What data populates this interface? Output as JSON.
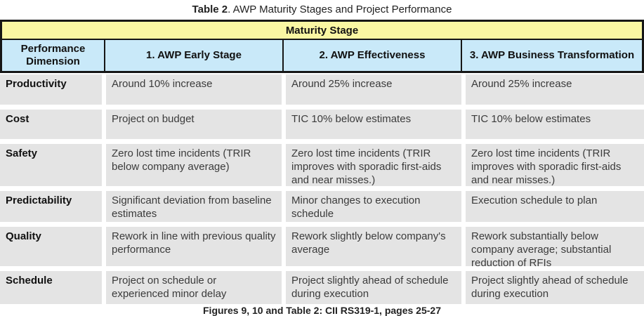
{
  "title": {
    "label": "Table 2",
    "text": ". AWP Maturity Stages and Project Performance"
  },
  "table": {
    "maturity_header": "Maturity Stage",
    "columns": [
      "Performance Dimension",
      "1. AWP Early Stage",
      "2. AWP Effectiveness",
      "3. AWP Business Transformation"
    ],
    "rows": [
      {
        "dimension": "Productivity",
        "early": "Around 10% increase",
        "effectiveness": "Around 25% increase",
        "transformation": "Around 25% increase"
      },
      {
        "dimension": "Cost",
        "early": "Project on budget",
        "effectiveness": "TIC 10% below estimates",
        "transformation": "TIC 10% below estimates"
      },
      {
        "dimension": "Safety",
        "early": "Zero lost time incidents (TRIR below company average)",
        "effectiveness": "Zero lost time incidents (TRIR improves with sporadic first-aids and near misses.)",
        "transformation": "Zero lost time incidents (TRIR improves with sporadic first-aids and near misses.)"
      },
      {
        "dimension": "Predictability",
        "early": "Significant deviation from baseline estimates",
        "effectiveness": "Minor changes to execution schedule",
        "transformation": "Execution schedule to plan"
      },
      {
        "dimension": "Quality",
        "early": "Rework in line with previous quality performance",
        "effectiveness": "Rework slightly below company's average",
        "transformation": "Rework substantially below company average; substantial reduction of RFIs"
      },
      {
        "dimension": "Schedule",
        "early": "Project on schedule or experienced minor delay",
        "effectiveness": "Project slightly ahead of schedule during execution",
        "transformation": "Project slightly ahead of schedule during execution"
      }
    ]
  },
  "caption": "Figures 9, 10 and Table 2: CII RS319-1, pages 25-27",
  "colors": {
    "maturity_band_yellow": "#FAF7A3",
    "column_header_blue": "#C9E9F9",
    "body_cell_gray": "#E4E4E4",
    "border_black": "#161616"
  }
}
